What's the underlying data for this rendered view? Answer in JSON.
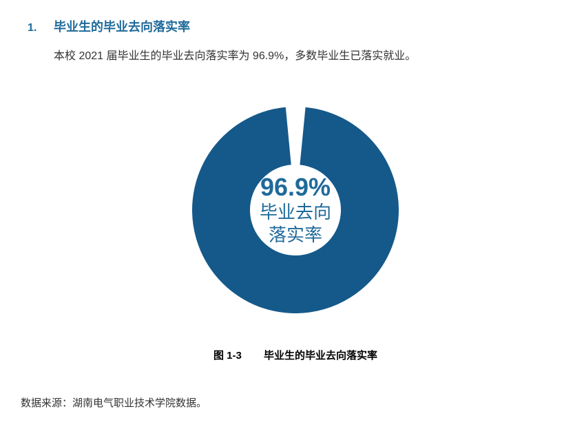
{
  "heading": {
    "number": "1.",
    "title": "毕业生的毕业去向落实率"
  },
  "body": "本校 2021 届毕业生的毕业去向落实率为 96.9%，多数毕业生已落实就业。",
  "chart": {
    "type": "donut",
    "value_pct": 96.9,
    "center_value": "96.9%",
    "center_label_line1": "毕业去向",
    "center_label_line2": "落实率",
    "ring_color": "#15598a",
    "gap_color": "#ffffff",
    "ring_thickness_ratio": 0.28,
    "background_color": "#ffffff",
    "center_text_color": "#1f6a9a",
    "pct_fontsize": 36,
    "label_fontsize": 26
  },
  "caption": {
    "figure_number": "图 1-3",
    "figure_title": "毕业生的毕业去向落实率"
  },
  "source": "数据来源：湖南电气职业技术学院数据。"
}
